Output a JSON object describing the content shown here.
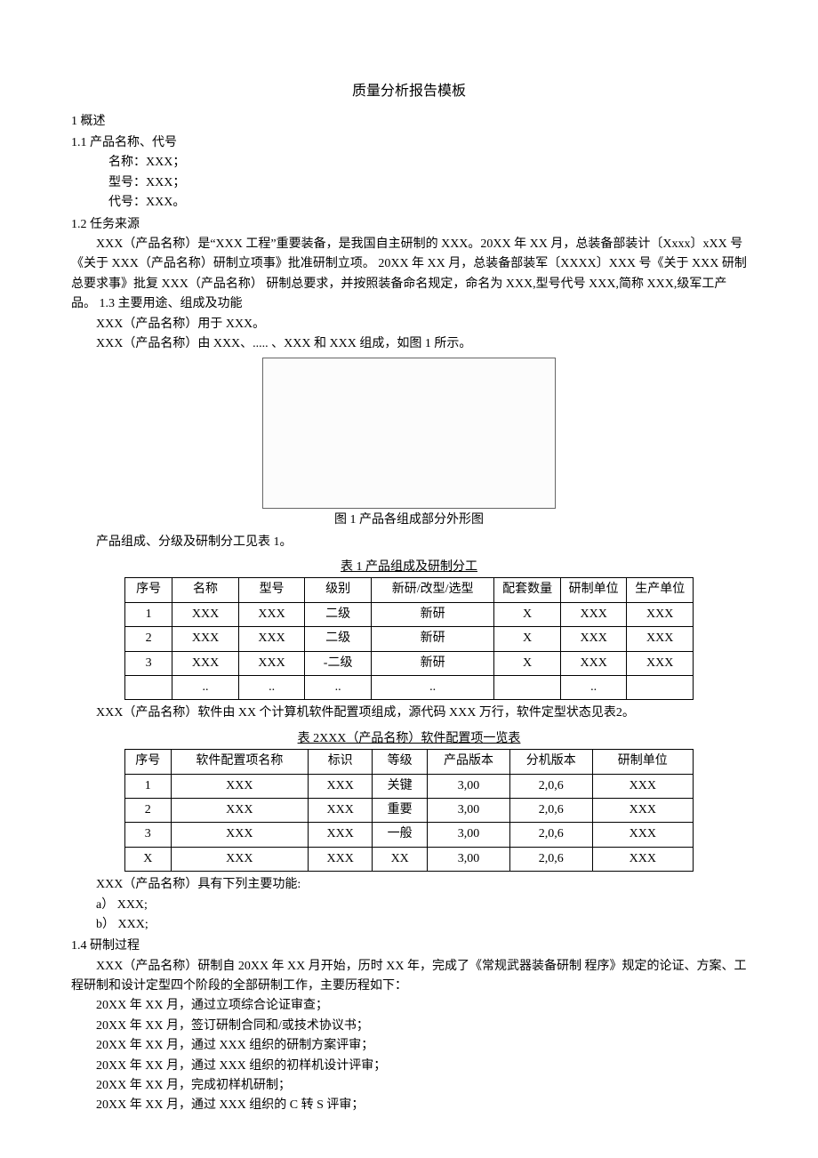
{
  "title": "质量分析报告模板",
  "s1": {
    "heading": "1 概述",
    "s11": {
      "heading": "1.1 产品名称、代号",
      "l1": "名称：XXX；",
      "l2": "型号：XXX；",
      "l3": "代号：XXX。"
    },
    "s12": {
      "heading": "1.2 任务来源",
      "p1": "XXX（产品名称）是“XXX 工程”重要装备，是我国自主研制的 XXX。20XX 年 XX 月，总装备部装计〔Xxxx〕xXX 号《关于 XXX（产品名称）研制立项事》批准研制立项。 20XX 年 XX 月，总装备部装军〔XXXX〕XXX 号《关于 XXX 研制总要求事》批复 XXX（产品名称） 研制总要求，并按照装备命名规定，命名为 XXX,型号代号 XXX,简称 XXX,级军工产品。  1.3 主要用途、组成及功能",
      "p2": "XXX（产品名称）用于 XXX。",
      "p3": "XXX（产品名称）由 XXX、..... 、XXX 和 XXX 组成，如图 1 所示。"
    },
    "fig1_caption": "图 1 产品各组成部分外形图",
    "after_fig1": "产品组成、分级及研制分工见表 1。",
    "table1": {
      "caption": "表 1 产品组成及研制分工",
      "columns": [
        "序号",
        "名称",
        "型号",
        "级别",
        "新研/改型/选型",
        "配套数量",
        "研制单位",
        "生产单位"
      ],
      "rows": [
        [
          "1",
          "XXX",
          "XXX",
          "二级",
          "新研",
          "X",
          "XXX",
          "XXX"
        ],
        [
          "2",
          "XXX",
          "XXX",
          "二级",
          "新研",
          "X",
          "XXX",
          "XXX"
        ],
        [
          "3",
          "XXX",
          "XXX",
          "-二级",
          "新研",
          "X",
          "XXX",
          "XXX"
        ],
        [
          "",
          "..",
          "..",
          "..",
          "..",
          "",
          "..",
          ""
        ]
      ]
    },
    "after_table1": "XXX（产品名称）软件由 XX 个计算机软件配置项组成，源代码 XXX 万行，软件定型状态见表2。",
    "table2": {
      "caption": "表 2XXX（产品名称）软件配置项一览表",
      "columns": [
        "序号",
        "软件配置项名称",
        "标识",
        "等级",
        "产品版本",
        "分机版本",
        "研制单位"
      ],
      "rows": [
        [
          "1",
          "XXX",
          "XXX",
          "关键",
          "3,00",
          "2,0,6",
          "XXX"
        ],
        [
          "2",
          "XXX",
          "XXX",
          "重要",
          "3,00",
          "2,0,6",
          "XXX"
        ],
        [
          "3",
          "XXX",
          "XXX",
          "一般",
          "3,00",
          "2,0,6",
          "XXX"
        ],
        [
          "X",
          "XXX",
          "XXX",
          "XX",
          "3,00",
          "2,0,6",
          "XXX"
        ]
      ]
    },
    "after_table2_l1": "XXX（产品名称）具有下列主要功能:",
    "after_table2_l2": "a） XXX;",
    "after_table2_l3": "b） XXX;",
    "s14": {
      "heading": "1.4 研制过程",
      "p1": "XXX（产品名称）研制自 20XX 年 XX 月开始，历时 XX 年，完成了《常规武器装备研制 程序》规定的论证、方案、工程研制和设计定型四个阶段的全部研制工作，主要历程如下：",
      "l1": "20XX 年 XX 月，通过立项综合论证审查；",
      "l2": "20XX 年 XX 月，签订研制合同和/或技术协议书；",
      "l3": "20XX 年 XX 月，通过 XXX 组织的研制方案评审；",
      "l4": "20XX 年 XX 月，通过 XXX 组织的初样机设计评审；",
      "l5": "20XX 年 XX 月，完成初样机研制；",
      "l6": "20XX 年 XX 月，通过 XXX 组织的 C 转 S 评审；"
    }
  }
}
